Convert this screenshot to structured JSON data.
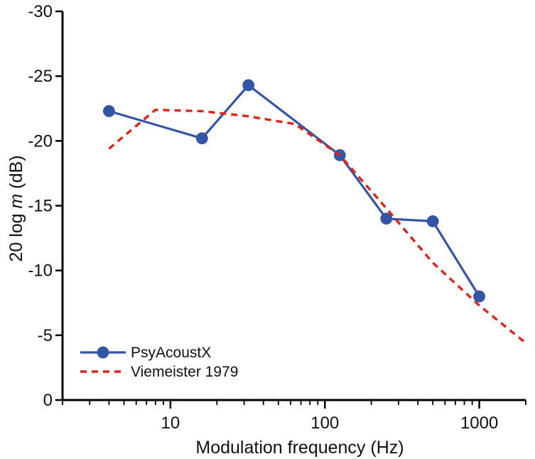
{
  "chart_data": {
    "type": "line",
    "title": "",
    "xlabel": "Modulation frequency (Hz)",
    "ylabel": {
      "prefix": "20 log ",
      "variable": "m",
      "suffix": "  (dB)"
    },
    "x_scale": "log",
    "xlim": [
      2,
      2000
    ],
    "ylim": [
      0,
      -30
    ],
    "x_ticks": [
      10,
      100,
      1000
    ],
    "y_ticks": [
      0,
      -5,
      -10,
      -15,
      -20,
      -25,
      -30
    ],
    "legend_position": "bottom-left",
    "series": [
      {
        "name": "PsyAcoustX",
        "style": "solid-line-with-circle-markers",
        "color": "#3355a5",
        "x": [
          4,
          16,
          32,
          125,
          250,
          500,
          1000
        ],
        "y": [
          -22.3,
          -20.2,
          -24.3,
          -18.9,
          -14.0,
          -13.8,
          -8.0
        ]
      },
      {
        "name": "Viemeister  1979",
        "style": "dashed-line",
        "color": "#e2231a",
        "x": [
          4,
          8,
          16,
          32,
          64,
          125,
          250,
          500,
          1000,
          2000
        ],
        "y": [
          -19.4,
          -22.4,
          -22.3,
          -21.9,
          -21.3,
          -18.9,
          -14.8,
          -10.6,
          -7.3,
          -4.4
        ]
      }
    ]
  }
}
